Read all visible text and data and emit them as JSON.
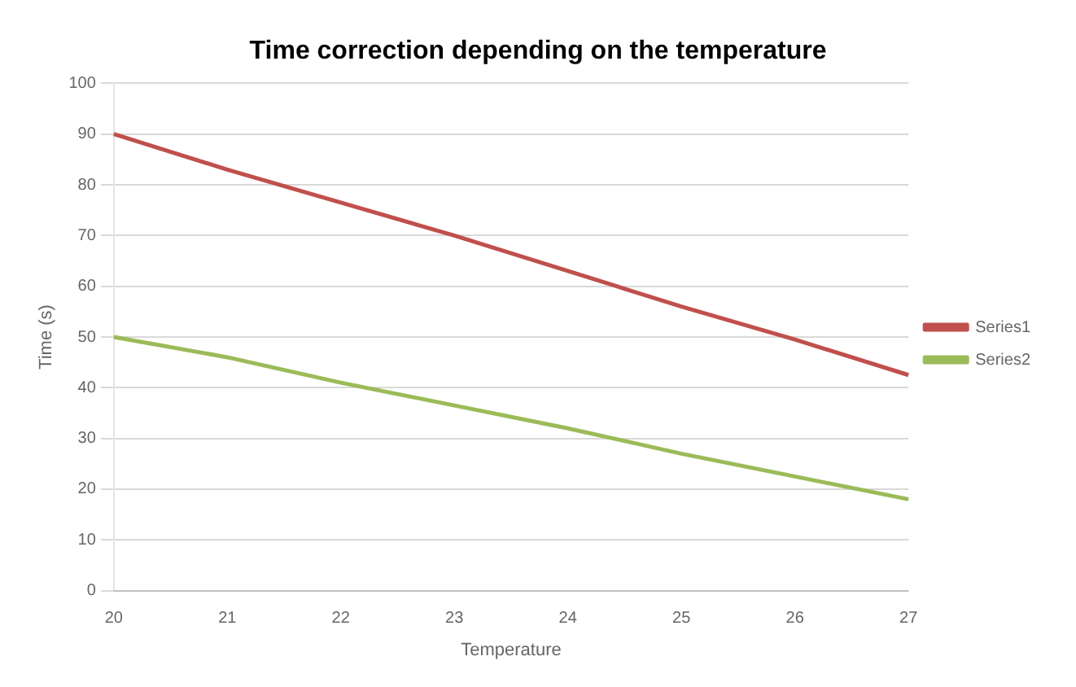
{
  "chart_data": {
    "type": "line",
    "title": "Time correction depending on the temperature",
    "xlabel": "Temperature",
    "ylabel": "Time (s)",
    "categories": [
      "20",
      "21",
      "22",
      "23",
      "24",
      "25",
      "26",
      "27"
    ],
    "series": [
      {
        "name": "Series1",
        "color": "#c0504d",
        "values": [
          90,
          83,
          76.5,
          70,
          63,
          56,
          49.5,
          42.5
        ]
      },
      {
        "name": "Series2",
        "color": "#9bbb59",
        "values": [
          50,
          46,
          41,
          36.5,
          32,
          27,
          22.5,
          18
        ]
      }
    ],
    "ylim": [
      0,
      100
    ],
    "yticks": [
      0,
      10,
      20,
      30,
      40,
      50,
      60,
      70,
      80,
      90,
      100
    ],
    "grid": "y",
    "legend": "right",
    "marker": "none",
    "line_style": "solid"
  }
}
